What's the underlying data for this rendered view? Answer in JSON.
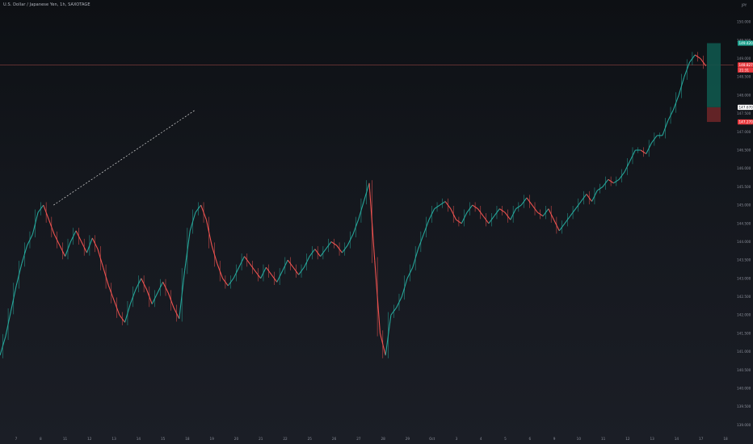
{
  "chart_data": {
    "type": "line",
    "title": "U.S. Dollar / Japanese Yen, 1h, SAXOTAGE",
    "currency": "JPY",
    "y_ticks": [
      "150.000",
      "149.500",
      "149.000",
      "148.500",
      "148.000",
      "147.500",
      "147.000",
      "146.500",
      "146.000",
      "145.500",
      "145.000",
      "144.500",
      "144.000",
      "143.500",
      "143.000",
      "142.500",
      "142.000",
      "141.500",
      "141.000",
      "140.500",
      "140.000",
      "139.500",
      "139.000"
    ],
    "x_ticks": [
      "7",
      "8",
      "11",
      "12",
      "13",
      "14",
      "15",
      "18",
      "19",
      "20",
      "21",
      "22",
      "25",
      "26",
      "27",
      "28",
      "29",
      "Oct",
      "3",
      "4",
      "5",
      "6",
      "9",
      "10",
      "11",
      "12",
      "13",
      "14",
      "17",
      "18"
    ],
    "ylim": [
      138.7,
      150.4
    ],
    "series": [
      {
        "values": [
          140.9,
          141.4,
          142.1,
          142.8,
          143.4,
          143.9,
          144.2,
          144.8,
          145.0,
          144.6,
          144.2,
          143.9,
          143.6,
          144.0,
          144.3,
          144.0,
          143.7,
          144.1,
          143.8,
          143.3,
          142.8,
          142.4,
          142.0,
          141.8,
          142.3,
          142.7,
          143.0,
          142.7,
          142.3,
          142.6,
          142.9,
          142.6,
          142.2,
          141.9,
          143.2,
          144.3,
          144.8,
          145.0,
          144.6,
          143.9,
          143.4,
          143.0,
          142.8,
          143.0,
          143.3,
          143.6,
          143.4,
          143.2,
          143.0,
          143.3,
          143.1,
          142.9,
          143.2,
          143.5,
          143.3,
          143.1,
          143.3,
          143.6,
          143.8,
          143.6,
          143.8,
          144.0,
          143.9,
          143.7,
          143.9,
          144.2,
          144.6,
          145.1,
          145.6,
          143.5,
          141.5,
          140.9,
          142.0,
          142.2,
          142.5,
          143.0,
          143.3,
          143.8,
          144.2,
          144.6,
          144.9,
          145.0,
          145.1,
          144.9,
          144.6,
          144.5,
          144.8,
          145.0,
          144.9,
          144.7,
          144.5,
          144.7,
          144.9,
          144.8,
          144.6,
          144.9,
          145.0,
          145.2,
          145.0,
          144.8,
          144.7,
          144.9,
          144.6,
          144.3,
          144.5,
          144.7,
          144.9,
          145.1,
          145.3,
          145.1,
          145.4,
          145.5,
          145.7,
          145.6,
          145.7,
          145.9,
          146.2,
          146.5,
          146.5,
          146.4,
          146.7,
          146.9,
          146.9,
          147.3,
          147.6,
          148.0,
          148.5,
          148.9,
          149.1,
          149.0,
          148.8
        ],
        "x_start_label": "7",
        "x_end_label": "17"
      }
    ],
    "trendline": {
      "from": [
        8,
        145.0
      ],
      "to": [
        18,
        147.6
      ],
      "style": "dashed"
    },
    "horizontal_line": 148.827,
    "position": {
      "entry": 147.67,
      "target": 149.42,
      "stop": 147.27
    },
    "price_tags": {
      "target": "149.420",
      "current_top": "148.827",
      "current_bottom": "21:31",
      "entry": "147.670",
      "stop": "147.270"
    },
    "colors": {
      "up": "#26a69a",
      "down": "#ef5350",
      "target_zone": "#10564c",
      "stop_zone": "#6b2528",
      "hline": "#7a3a3a",
      "trend": "#d9d9d9",
      "tag_red": "#e9393e",
      "tag_green": "#1ea38f"
    },
    "grid": false,
    "legend": "none"
  }
}
